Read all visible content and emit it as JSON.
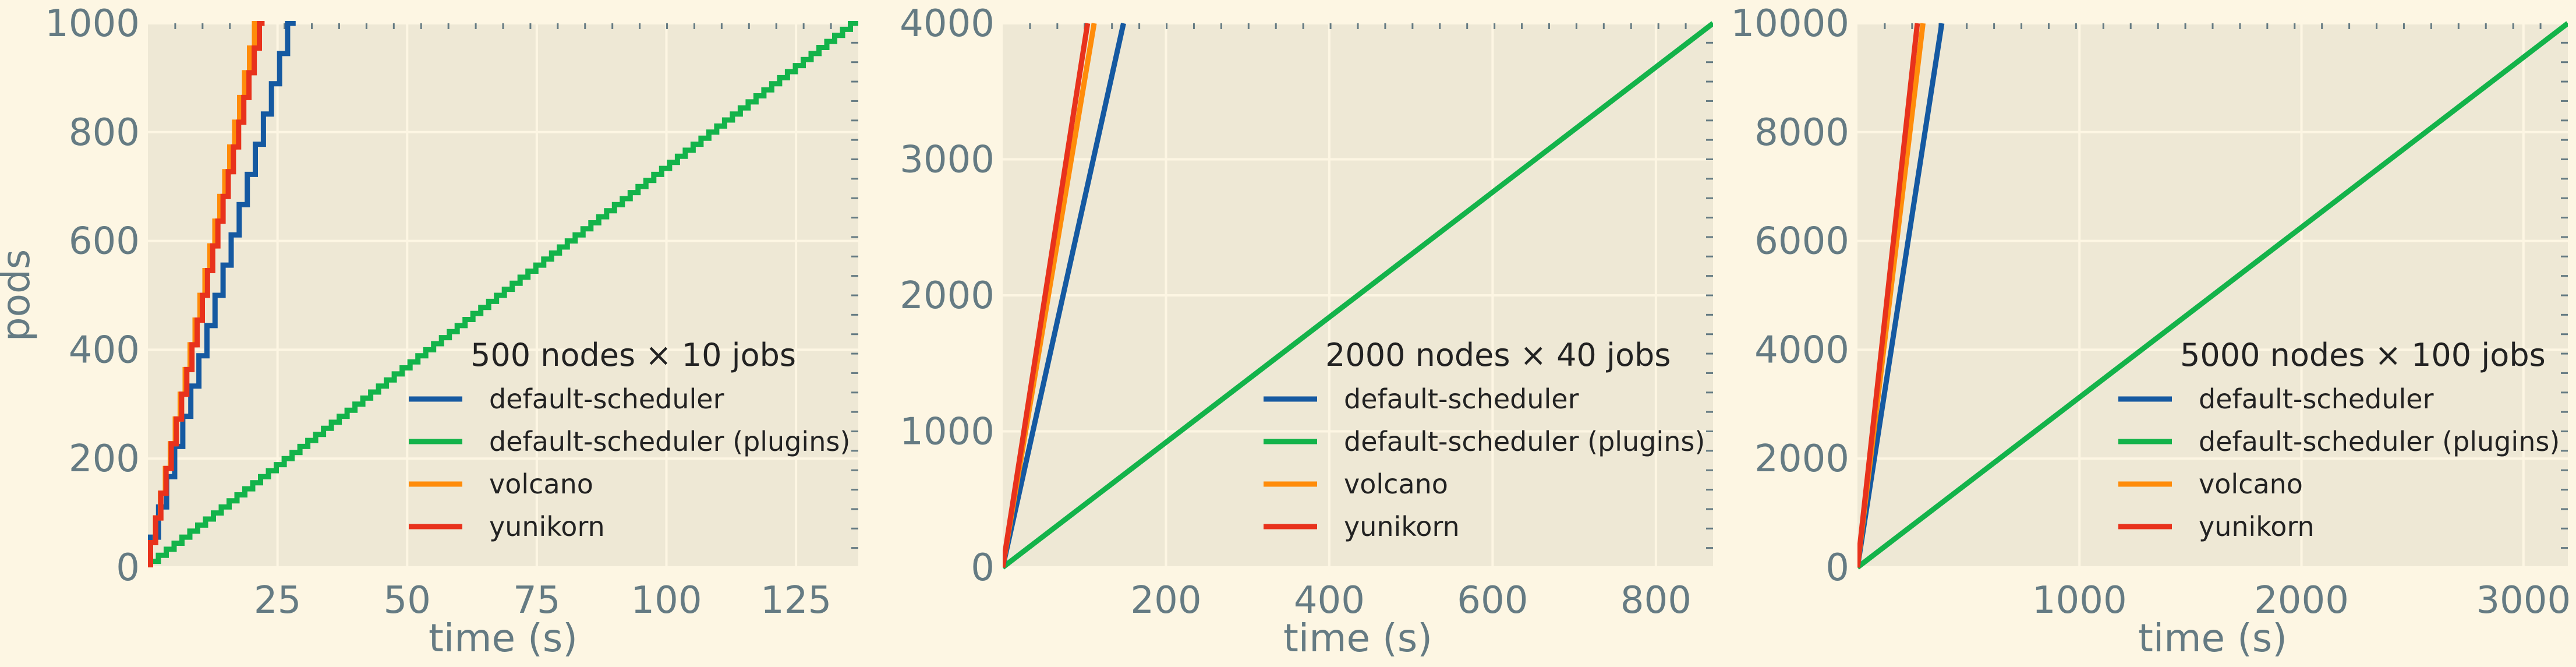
{
  "colors": {
    "figure_bg": "#fdf6e3",
    "plot_bg": "#eee8d5",
    "grid": "#fdf6e3",
    "text": "#657b83",
    "default-scheduler": "#1559a1",
    "default-scheduler (plugins)": "#13b34a",
    "volcano": "#ff8c0a",
    "yunikorn": "#e8321c"
  },
  "chart_data": [
    {
      "type": "line",
      "title": "500 nodes × 10 jobs",
      "xlabel": "time (s)",
      "ylabel": "pods",
      "xlim": [
        0,
        137
      ],
      "ylim": [
        0,
        1000
      ],
      "xticks": [
        25,
        50,
        75,
        100,
        125
      ],
      "yticks": [
        0,
        200,
        400,
        600,
        800,
        1000
      ],
      "grid": true,
      "legend_position": "lower-right",
      "series": [
        {
          "name": "default-scheduler",
          "x": [
            0,
            28.5
          ],
          "y": [
            0,
            1000
          ],
          "step": true
        },
        {
          "name": "default-scheduler (plugins)",
          "x": [
            0,
            137
          ],
          "y": [
            0,
            1000
          ],
          "step": true
        },
        {
          "name": "volcano",
          "x": [
            0,
            21.5
          ],
          "y": [
            0,
            1000
          ],
          "step": true
        },
        {
          "name": "yunikorn",
          "x": [
            0,
            22.5
          ],
          "y": [
            0,
            1000
          ],
          "step": true
        }
      ]
    },
    {
      "type": "line",
      "title": "2000 nodes × 40 jobs",
      "xlabel": "time (s)",
      "ylabel": "",
      "xlim": [
        0,
        870
      ],
      "ylim": [
        0,
        4000
      ],
      "xticks": [
        200,
        400,
        600,
        800
      ],
      "yticks": [
        0,
        1000,
        2000,
        3000,
        4000
      ],
      "grid": true,
      "legend_position": "lower-right",
      "series": [
        {
          "name": "default-scheduler",
          "x": [
            0,
            148
          ],
          "y": [
            0,
            4000
          ]
        },
        {
          "name": "default-scheduler (plugins)",
          "x": [
            0,
            870
          ],
          "y": [
            0,
            4000
          ]
        },
        {
          "name": "volcano",
          "x": [
            0,
            112
          ],
          "y": [
            0,
            4000
          ]
        },
        {
          "name": "yunikorn",
          "x": [
            0,
            104
          ],
          "y": [
            0,
            4000
          ]
        }
      ]
    },
    {
      "type": "line",
      "title": "5000 nodes × 100 jobs",
      "xlabel": "time (s)",
      "ylabel": "",
      "xlim": [
        0,
        3200
      ],
      "ylim": [
        0,
        10000
      ],
      "xticks": [
        1000,
        2000,
        3000
      ],
      "yticks": [
        0,
        2000,
        4000,
        6000,
        8000,
        10000
      ],
      "grid": true,
      "legend_position": "lower-right",
      "series": [
        {
          "name": "default-scheduler",
          "x": [
            0,
            380
          ],
          "y": [
            0,
            10000
          ]
        },
        {
          "name": "default-scheduler (plugins)",
          "x": [
            0,
            3200
          ],
          "y": [
            0,
            10000
          ]
        },
        {
          "name": "volcano",
          "x": [
            0,
            295
          ],
          "y": [
            0,
            10000
          ]
        },
        {
          "name": "yunikorn",
          "x": [
            0,
            270
          ],
          "y": [
            0,
            10000
          ]
        }
      ]
    }
  ]
}
